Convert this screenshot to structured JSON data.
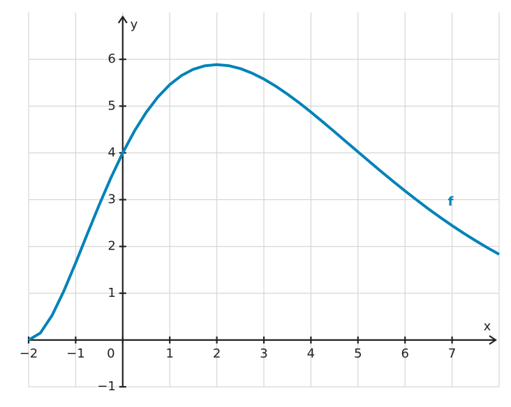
{
  "chart_data": {
    "type": "line",
    "x_label": "x",
    "y_label": "y",
    "xlim": [
      -2,
      8
    ],
    "ylim": [
      -1,
      7
    ],
    "xticks": [
      {
        "value": -2,
        "label": "−2"
      },
      {
        "value": -1,
        "label": "−1"
      },
      0,
      1,
      2,
      3,
      4,
      5,
      6,
      7
    ],
    "yticks": [
      {
        "value": -1,
        "label": "−1"
      },
      1,
      2,
      3,
      4,
      5,
      6
    ],
    "grid": true,
    "x": [
      -2,
      -1.75,
      -1.5,
      -1.25,
      -1,
      -0.75,
      -0.5,
      -0.25,
      0,
      0.25,
      0.5,
      0.75,
      1,
      1.25,
      1.5,
      1.75,
      2,
      2.25,
      2.5,
      2.75,
      3,
      3.25,
      3.5,
      3.75,
      4,
      4.25,
      4.5,
      4.75,
      5,
      5.25,
      5.5,
      5.75,
      6,
      6.25,
      6.5,
      6.75,
      7,
      7.25,
      7.5,
      7.75,
      8
    ],
    "series": [
      {
        "name": "f",
        "color": "#0083b8",
        "values": [
          0,
          0.15,
          0.529,
          1.051,
          1.649,
          2.273,
          2.889,
          3.47,
          4,
          4.468,
          4.868,
          5.198,
          5.459,
          5.654,
          5.787,
          5.863,
          5.886,
          5.865,
          5.802,
          5.704,
          5.578,
          5.427,
          5.257,
          5.071,
          4.872,
          4.664,
          4.453,
          4.237,
          4.022,
          3.808,
          3.596,
          3.389,
          3.187,
          2.991,
          2.801,
          2.62,
          2.446,
          2.28,
          2.123,
          1.973,
          1.832
        ]
      }
    ]
  }
}
